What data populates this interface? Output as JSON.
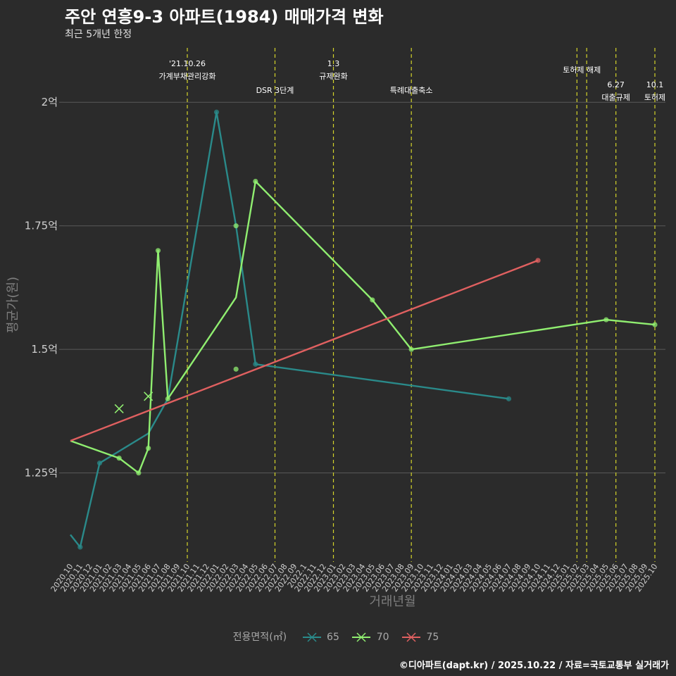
{
  "title": "주안 연흥9-3 아파트(1984) 매매가격 변화",
  "subtitle": "최근 5개년 한정",
  "caption": "©디아파트(dapt.kr) / 2025.10.22 / 자료=국토교통부 실거래가",
  "colors": {
    "background": "#2b2b2b",
    "grid": "#5a5a5a",
    "event_line": "#d4d42a",
    "s65": "#2a8a8a",
    "s70": "#90ee70",
    "s75": "#e06060"
  },
  "chart_data": {
    "type": "line",
    "xlabel": "거래년월",
    "ylabel": "평균가(원)",
    "x_months": [
      "2020.10",
      "2020.11",
      "2020.12",
      "2021.01",
      "2021.02",
      "2021.03",
      "2021.04",
      "2021.05",
      "2021.06",
      "2021.07",
      "2021.08",
      "2021.09",
      "2021.10",
      "2021.11",
      "2021.12",
      "2022.01",
      "2022.02",
      "2022.03",
      "2022.04",
      "2022.05",
      "2022.06",
      "2022.07",
      "2022.08",
      "2022.09",
      "2022.10",
      "2022.11",
      "2022.12",
      "2023.01",
      "2023.02",
      "2023.03",
      "2023.04",
      "2023.05",
      "2023.06",
      "2023.07",
      "2023.08",
      "2023.09",
      "2023.10",
      "2023.11",
      "2023.12",
      "2024.01",
      "2024.02",
      "2024.03",
      "2024.04",
      "2024.05",
      "2024.06",
      "2024.07",
      "2024.08",
      "2024.09",
      "2024.10",
      "2024.11",
      "2024.12",
      "2025.01",
      "2025.02",
      "2025.03",
      "2025.04",
      "2025.05",
      "2025.06",
      "2025.07",
      "2025.08",
      "2025.09",
      "2025.10"
    ],
    "x_tick_labels": [
      "2020.10",
      "2020.11",
      "2020.12",
      "2021.01",
      "2021.02",
      "2021.03",
      "2021.04",
      "2021.05",
      "2021.06",
      "2021.07",
      "2021.08",
      "2021.09",
      "2021.10",
      "2021.11",
      "2021.12",
      "2022.01",
      "2022.02",
      "2022.03",
      "2022.04",
      "2022.05",
      "2022.06",
      "2022.07",
      "2022.08",
      "2022.09",
      "2022.1",
      "2022.11",
      "2022.12",
      "2023.01",
      "2023.02",
      "2023.03",
      "2023.04",
      "2023.05",
      "2023.06",
      "2023.07",
      "2023.08",
      "2023.09",
      "2023.10",
      "2023.11",
      "2023.12",
      "2024.01",
      "2024.02",
      "2024.03",
      "2024.04",
      "2024.05",
      "2024.06",
      "2024.07",
      "2024.08",
      "2024.09",
      "2024.10",
      "2024.11",
      "2024.12",
      "2025.01",
      "2025.02",
      "2025.03",
      "2025.04",
      "2025.05",
      "2025.06",
      "2025.07",
      "2025.08",
      "2025.09",
      "2025.10"
    ],
    "y_ticks": [
      {
        "value": 125000000,
        "label": "1.25억"
      },
      {
        "value": 150000000,
        "label": "1.5억"
      },
      {
        "value": 175000000,
        "label": "1.75억"
      },
      {
        "value": 200000000,
        "label": "2억"
      }
    ],
    "ylim": [
      107000000,
      211000000
    ],
    "legend_title": "전용면적(㎡)",
    "series": [
      {
        "name": "65",
        "color": "#2a8a8a",
        "line": [
          [
            "2020.10",
            112500000
          ],
          [
            "2020.11",
            110000000
          ],
          [
            "2021.01",
            127000000
          ],
          [
            "2021.06",
            133000000
          ],
          [
            "2021.08",
            140000000
          ],
          [
            "2022.01",
            198000000
          ],
          [
            "2022.03",
            175000000
          ],
          [
            "2022.05",
            147000000
          ],
          [
            "2024.07",
            140000000
          ]
        ],
        "points": [
          [
            "2020.11",
            110000000
          ],
          [
            "2021.01",
            127000000
          ],
          [
            "2022.01",
            198000000
          ],
          [
            "2022.05",
            147000000
          ],
          [
            "2024.07",
            140000000
          ]
        ],
        "crosses": []
      },
      {
        "name": "70",
        "color": "#90ee70",
        "line": [
          [
            "2020.10",
            131500000
          ],
          [
            "2021.03",
            128000000
          ],
          [
            "2021.05",
            125000000
          ],
          [
            "2021.06",
            130000000
          ],
          [
            "2021.07",
            170000000
          ],
          [
            "2021.08",
            140000000
          ],
          [
            "2022.03",
            160500000
          ],
          [
            "2022.05",
            184000000
          ],
          [
            "2023.05",
            160000000
          ],
          [
            "2023.09",
            150000000
          ],
          [
            "2025.05",
            156000000
          ],
          [
            "2025.10",
            155000000
          ]
        ],
        "points": [
          [
            "2021.03",
            128000000
          ],
          [
            "2021.05",
            125000000
          ],
          [
            "2021.06",
            130000000
          ],
          [
            "2021.07",
            170000000
          ],
          [
            "2021.08",
            140000000
          ],
          [
            "2022.05",
            184000000
          ],
          [
            "2023.05",
            160000000
          ],
          [
            "2023.09",
            150000000
          ],
          [
            "2025.05",
            156000000
          ],
          [
            "2025.10",
            155000000
          ],
          [
            "2022.03",
            175000000
          ],
          [
            "2022.03",
            146000000
          ]
        ],
        "crosses": [
          [
            "2021.03",
            138000000
          ],
          [
            "2021.06",
            140500000
          ]
        ]
      },
      {
        "name": "75",
        "color": "#e06060",
        "line": [
          [
            "2020.10",
            131500000
          ],
          [
            "2024.10",
            168000000
          ]
        ],
        "points": [
          [
            "2024.10",
            168000000
          ]
        ],
        "crosses": []
      }
    ],
    "events": [
      {
        "month": "2021.10",
        "lines": [
          "'21.10.26",
          "가계부채관리강화"
        ],
        "level": 0
      },
      {
        "month": "2022.07",
        "lines": [
          "DSR 3단계"
        ],
        "level": 1
      },
      {
        "month": "2023.01",
        "lines": [
          "1.3",
          "규제완화"
        ],
        "level": 0
      },
      {
        "month": "2023.09",
        "lines": [
          "특례대출축소"
        ],
        "level": 1
      },
      {
        "month": "2025.02",
        "lines": [],
        "level": 0
      },
      {
        "month": "2025.03",
        "lines": [],
        "level": 0
      },
      {
        "month": "2025.06",
        "lines": [
          "6.27",
          "대출규제"
        ],
        "level": 2
      },
      {
        "month": "2025.10",
        "lines": [
          "10.1",
          "토허제"
        ],
        "level": 2
      }
    ],
    "event_free_labels": [
      {
        "between": [
          "2025.02",
          "2025.03"
        ],
        "text": "토허제 해제"
      }
    ]
  }
}
